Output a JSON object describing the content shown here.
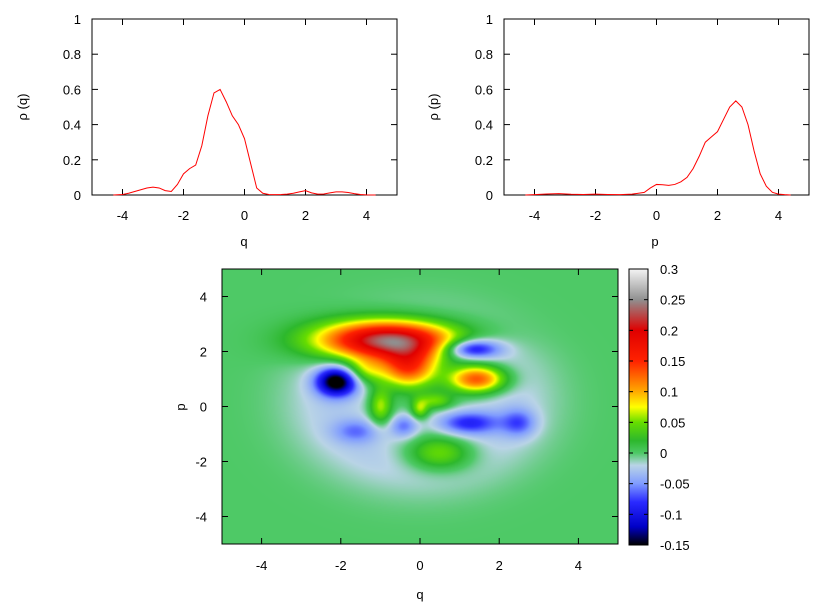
{
  "chart_data": [
    {
      "type": "line",
      "xlabel": "q",
      "ylabel": "ρ (q)",
      "xlim": [
        -5,
        5
      ],
      "ylim": [
        0,
        1
      ],
      "xticks": [
        -4,
        -2,
        0,
        2,
        4
      ],
      "yticks": [
        0,
        0.2,
        0.4,
        0.6,
        0.8,
        1
      ],
      "ytick_labels": [
        "0",
        "0.2",
        "0.4",
        "0.6",
        "0.8",
        "1"
      ],
      "line_color": "#ff0000",
      "series": [
        {
          "x": [
            -4.3,
            -4.0,
            -3.8,
            -3.5,
            -3.2,
            -3.0,
            -2.8,
            -2.6,
            -2.4,
            -2.2,
            -2.0,
            -1.8,
            -1.6,
            -1.4,
            -1.2,
            -1.0,
            -0.8,
            -0.6,
            -0.4,
            -0.2,
            0.0,
            0.2,
            0.4,
            0.6,
            0.8,
            1.0,
            1.2,
            1.4,
            1.6,
            1.8,
            2.0,
            2.2,
            2.4,
            2.6,
            2.8,
            3.0,
            3.2,
            3.4,
            3.6,
            3.8,
            4.0,
            4.3
          ],
          "y": [
            0.0,
            0.003,
            0.01,
            0.025,
            0.04,
            0.045,
            0.04,
            0.025,
            0.02,
            0.06,
            0.12,
            0.15,
            0.17,
            0.28,
            0.45,
            0.58,
            0.6,
            0.53,
            0.45,
            0.4,
            0.32,
            0.18,
            0.04,
            0.01,
            0.003,
            0.002,
            0.003,
            0.005,
            0.01,
            0.018,
            0.025,
            0.012,
            0.005,
            0.006,
            0.012,
            0.018,
            0.018,
            0.014,
            0.008,
            0.003,
            0.001,
            0.0
          ]
        }
      ]
    },
    {
      "type": "line",
      "xlabel": "p",
      "ylabel": "ρ (p)",
      "xlim": [
        -5,
        5
      ],
      "ylim": [
        0,
        1
      ],
      "xticks": [
        -4,
        -2,
        0,
        2,
        4
      ],
      "yticks": [
        0,
        0.2,
        0.4,
        0.6,
        0.8,
        1
      ],
      "ytick_labels": [
        "0",
        "0.2",
        "0.4",
        "0.6",
        "0.8",
        "1"
      ],
      "line_color": "#ff0000",
      "series": [
        {
          "x": [
            -4.3,
            -4.0,
            -3.6,
            -3.2,
            -2.8,
            -2.4,
            -2.0,
            -1.6,
            -1.2,
            -0.8,
            -0.4,
            -0.2,
            0.0,
            0.2,
            0.4,
            0.6,
            0.8,
            1.0,
            1.2,
            1.4,
            1.6,
            1.8,
            2.0,
            2.2,
            2.4,
            2.6,
            2.8,
            3.0,
            3.2,
            3.4,
            3.6,
            3.8,
            4.0,
            4.2,
            4.4
          ],
          "y": [
            0.0,
            0.002,
            0.006,
            0.008,
            0.004,
            0.003,
            0.005,
            0.003,
            0.002,
            0.005,
            0.015,
            0.04,
            0.06,
            0.058,
            0.055,
            0.06,
            0.075,
            0.1,
            0.15,
            0.22,
            0.3,
            0.33,
            0.36,
            0.43,
            0.5,
            0.535,
            0.5,
            0.4,
            0.25,
            0.12,
            0.05,
            0.015,
            0.005,
            0.002,
            0.0
          ]
        }
      ]
    },
    {
      "type": "heatmap",
      "xlabel": "q",
      "ylabel": "p",
      "xlim": [
        -5,
        5
      ],
      "ylim": [
        -5,
        5
      ],
      "xticks": [
        -4,
        -2,
        0,
        2,
        4
      ],
      "yticks": [
        -4,
        -2,
        0,
        2,
        4
      ],
      "colorbar": {
        "range": [
          -0.15,
          0.3
        ],
        "ticks": [
          "0.3",
          "0.25",
          "0.2",
          "0.15",
          "0.1",
          "0.05",
          "0",
          "-0.05",
          "-0.1",
          "-0.15"
        ],
        "stops": [
          {
            "v": -0.15,
            "color": "#000000"
          },
          {
            "v": -0.12,
            "color": "#0000c8"
          },
          {
            "v": -0.08,
            "color": "#2a2aff"
          },
          {
            "v": -0.05,
            "color": "#7f9bff"
          },
          {
            "v": -0.02,
            "color": "#b9d4e6"
          },
          {
            "v": 0.0,
            "color": "#4ec966"
          },
          {
            "v": 0.02,
            "color": "#2db82d"
          },
          {
            "v": 0.05,
            "color": "#66dd00"
          },
          {
            "v": 0.075,
            "color": "#ffff00"
          },
          {
            "v": 0.1,
            "color": "#ffaa00"
          },
          {
            "v": 0.15,
            "color": "#ff2200"
          },
          {
            "v": 0.2,
            "color": "#e00000"
          },
          {
            "v": 0.25,
            "color": "#909090"
          },
          {
            "v": 0.3,
            "color": "#f4f4f4"
          }
        ]
      },
      "features": [
        {
          "q": -0.8,
          "p": 2.4,
          "sq": 1.2,
          "sp": 0.5,
          "amp": 0.26
        },
        {
          "q": -0.3,
          "p": 1.4,
          "sq": 0.5,
          "sp": 0.5,
          "amp": 0.14
        },
        {
          "q": -1.4,
          "p": 1.3,
          "sq": 0.35,
          "sp": 0.35,
          "amp": 0.06
        },
        {
          "q": 1.45,
          "p": 1.0,
          "sq": 0.5,
          "sp": 0.35,
          "amp": 0.15
        },
        {
          "q": 1.3,
          "p": 2.1,
          "sq": 0.5,
          "sp": 0.25,
          "amp": -0.1
        },
        {
          "q": -2.1,
          "p": 0.9,
          "sq": 0.35,
          "sp": 0.35,
          "amp": -0.15
        },
        {
          "q": -1.0,
          "p": 0.0,
          "sq": 0.2,
          "sp": 0.45,
          "amp": 0.07
        },
        {
          "q": 0.0,
          "p": -0.1,
          "sq": 0.15,
          "sp": 0.25,
          "amp": 0.06
        },
        {
          "q": 0.4,
          "p": 0.2,
          "sq": 0.3,
          "sp": 0.2,
          "amp": 0.05
        },
        {
          "q": 0.5,
          "p": -1.7,
          "sq": 0.6,
          "sp": 0.45,
          "amp": 0.07
        },
        {
          "q": 1.2,
          "p": -0.6,
          "sq": 0.55,
          "sp": 0.3,
          "amp": -0.07
        },
        {
          "q": 2.5,
          "p": -0.6,
          "sq": 0.3,
          "sp": 0.35,
          "amp": -0.05
        },
        {
          "q": -0.4,
          "p": -0.7,
          "sq": 0.25,
          "sp": 0.3,
          "amp": -0.05
        },
        {
          "q": -1.6,
          "p": -0.9,
          "sq": 0.4,
          "sp": 0.3,
          "amp": -0.04
        }
      ]
    }
  ]
}
